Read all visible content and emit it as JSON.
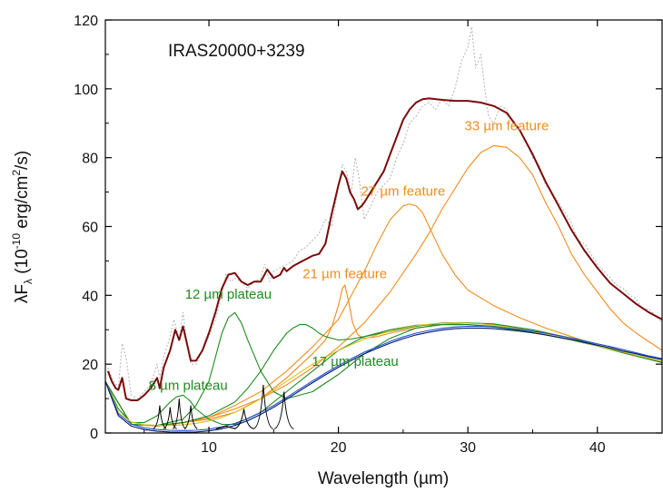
{
  "chart_data": {
    "type": "line",
    "title": "IRAS20000+3239",
    "xlabel": "Wavelength (µm)",
    "ylabel_parts": [
      "λF",
      "λ",
      " (10",
      "-10",
      " erg/cm",
      "2",
      "/s)"
    ],
    "xlim": [
      2,
      45
    ],
    "ylim": [
      0,
      120
    ],
    "xticks": [
      10,
      20,
      30,
      40
    ],
    "yticks": [
      0,
      20,
      40,
      60,
      80,
      100,
      120
    ],
    "grid": false,
    "colors": {
      "observed": "#b8b8b8",
      "model_total": "#7a0a0a",
      "orange_features": "#f08c1e",
      "green_plateaus": "#1e8a1e",
      "dust_continuum": "#001a6e",
      "continuum_blue": "#1f4fd0",
      "continuum_yellow": "#d8c020",
      "pah_lines": "#000000"
    },
    "annotations": [
      {
        "text": "33 µm feature",
        "color": "orange",
        "x": 33,
        "y": 88
      },
      {
        "text": "27 µm feature",
        "color": "orange",
        "x": 25,
        "y": 69
      },
      {
        "text": "21 µm feature",
        "color": "orange",
        "x": 20.5,
        "y": 45
      },
      {
        "text": "12 µm plateau",
        "color": "green",
        "x": 11.5,
        "y": 39
      },
      {
        "text": "17 µm plateau",
        "color": "green",
        "x": 21.3,
        "y": 19.5
      },
      {
        "text": "8 µm plateau",
        "color": "green",
        "x": 8.4,
        "y": 12.5
      }
    ],
    "series": [
      {
        "role": "observed",
        "color_key": "observed",
        "dashed": true,
        "x": [
          2.2,
          2.5,
          3,
          3.3,
          3.6,
          4,
          4.5,
          5,
          5.5,
          6,
          6.2,
          6.5,
          7,
          7.3,
          7.7,
          8,
          8.3,
          8.6,
          9,
          9.5,
          10,
          10.5,
          11,
          11.3,
          11.7,
          12,
          12.5,
          13,
          13.5,
          14,
          14.3,
          14.7,
          15,
          15.5,
          16,
          16.5,
          17,
          17.5,
          18,
          18.5,
          19,
          19.5,
          20,
          20.3,
          20.6,
          21,
          21.3,
          21.6,
          22,
          22.5,
          23,
          23.5,
          24,
          24.5,
          25,
          25.5,
          26,
          26.5,
          27,
          27.5,
          28,
          28.5,
          29,
          29.5,
          30,
          30.3,
          30.6,
          31,
          31.3,
          31.6,
          32,
          32.5,
          33,
          33.5,
          34,
          34.5,
          35,
          35.5,
          36,
          36.5,
          37,
          37.5,
          38,
          38.5,
          39,
          39.5,
          40,
          40.5,
          41,
          41.5,
          42,
          42.5,
          43,
          43.5,
          44,
          44.5,
          45
        ],
        "y": [
          19,
          16,
          13,
          26,
          22,
          11,
          10,
          12,
          14,
          20,
          16,
          22,
          28,
          33,
          27,
          35,
          26,
          20,
          20,
          24,
          28,
          33,
          40,
          46,
          44,
          45,
          44,
          42,
          44,
          45,
          49,
          44,
          47,
          48,
          49,
          50,
          53,
          54,
          56,
          58,
          62,
          60,
          72,
          78,
          76,
          70,
          80,
          74,
          62,
          66,
          70,
          72,
          74,
          80,
          84,
          90,
          92,
          95,
          96,
          94,
          97,
          95,
          100,
          108,
          112,
          118,
          106,
          110,
          100,
          92,
          90,
          95,
          94,
          90,
          88,
          85,
          80,
          78,
          72,
          70,
          67,
          64,
          61,
          56,
          55,
          52,
          49,
          47,
          45,
          43,
          42,
          40,
          39,
          36,
          36,
          34,
          32
        ]
      },
      {
        "role": "model_total",
        "color_key": "model_total",
        "x": [
          2.2,
          2.5,
          2.8,
          3.0,
          3.3,
          3.6,
          4,
          4.5,
          5,
          5.5,
          6,
          6.2,
          6.5,
          7,
          7.4,
          7.7,
          8,
          8.3,
          8.6,
          9,
          9.5,
          10,
          10.5,
          11,
          11.5,
          12,
          12.5,
          13,
          13.5,
          14,
          14.3,
          14.5,
          15,
          15.5,
          15.8,
          16,
          16.5,
          17,
          17.5,
          18,
          18.5,
          19,
          19.5,
          20,
          20.3,
          20.6,
          20.9,
          21.2,
          21.5,
          21.8,
          22,
          22.5,
          23,
          23.5,
          24,
          24.5,
          25,
          25.5,
          26,
          26.5,
          27,
          28,
          29,
          30,
          31,
          32,
          33,
          34,
          35,
          36,
          37,
          38,
          39,
          40,
          41,
          42,
          43,
          44,
          45
        ],
        "y": [
          18,
          15,
          13,
          12.5,
          16,
          10,
          9.5,
          9.5,
          11,
          13,
          16,
          13,
          19,
          24,
          30,
          27,
          31,
          26,
          21,
          21,
          24,
          29,
          35,
          42,
          46,
          46.5,
          44,
          43,
          44,
          44,
          46,
          47.5,
          45,
          46,
          48,
          47,
          48.5,
          49.5,
          50.5,
          51.5,
          52,
          55,
          64,
          72,
          76,
          74,
          70,
          68,
          65,
          66,
          67,
          70,
          73,
          76,
          81,
          86,
          91,
          94,
          96,
          97,
          97.2,
          96.8,
          96.5,
          96.5,
          96,
          95,
          93,
          88,
          81,
          73,
          66,
          59,
          53,
          48,
          43.5,
          40.5,
          37.5,
          35,
          33
        ]
      },
      {
        "role": "feature_33um",
        "color_key": "orange_features",
        "x": [
          2,
          4,
          6,
          8,
          10,
          12,
          14,
          16,
          18,
          20,
          22,
          24,
          26,
          27,
          28,
          29,
          30,
          31,
          32,
          33,
          34,
          35,
          36,
          37,
          38,
          39,
          40,
          41,
          42,
          43,
          44,
          45
        ],
        "y": [
          15,
          2.5,
          2,
          3,
          4.5,
          7,
          10,
          14,
          19,
          25,
          32,
          41,
          52,
          58,
          65,
          71,
          77,
          81.5,
          83.5,
          83,
          80,
          75,
          67,
          60,
          52,
          46,
          41,
          36,
          32,
          29,
          26.5,
          24
        ]
      },
      {
        "role": "feature_27um",
        "color_key": "orange_features",
        "x": [
          2,
          4,
          6,
          8,
          10,
          12,
          14,
          16,
          18,
          20,
          21,
          22,
          23,
          24,
          25,
          25.5,
          26,
          26.5,
          27,
          28,
          29,
          30,
          32,
          34,
          36,
          38,
          40,
          42,
          44,
          45
        ],
        "y": [
          15,
          2.5,
          2,
          3,
          4.5,
          8,
          12,
          18,
          25,
          33,
          40,
          47,
          55,
          62,
          66,
          66.5,
          66,
          64,
          60,
          52,
          46,
          41.5,
          37,
          33.5,
          30.5,
          28,
          25.5,
          23.5,
          21.5,
          20.5
        ]
      },
      {
        "role": "feature_21um",
        "color_key": "orange_features",
        "x": [
          2,
          4,
          6,
          8,
          10,
          12,
          14,
          16,
          18,
          19,
          19.5,
          20,
          20.3,
          20.5,
          20.8,
          21.1,
          21.5,
          22,
          23,
          24,
          26,
          28,
          30,
          32,
          35,
          38,
          40,
          42,
          44,
          45
        ],
        "y": [
          15,
          2.5,
          2,
          3,
          4,
          6,
          10,
          16,
          23,
          27,
          31,
          37,
          42,
          43,
          38,
          32,
          28.5,
          27.5,
          28,
          29,
          30.5,
          31.5,
          32,
          31.5,
          30,
          27.5,
          25.5,
          23.5,
          21.5,
          20.5
        ]
      },
      {
        "role": "plateau_17um",
        "color_key": "green_plateaus",
        "x": [
          2,
          4,
          6,
          8,
          10,
          12,
          13,
          14,
          15,
          16,
          16.5,
          17,
          17.5,
          18,
          18.5,
          19,
          20,
          21,
          22,
          24,
          26,
          28,
          30,
          32,
          35,
          38,
          40,
          42,
          45
        ],
        "y": [
          15,
          2.5,
          2.2,
          3,
          5,
          9,
          13,
          18,
          24,
          29,
          30.5,
          31.5,
          31.5,
          30.5,
          29,
          28,
          27,
          27.3,
          28,
          29.5,
          31,
          32,
          32,
          31.7,
          30,
          27.5,
          25.5,
          23.5,
          20.5
        ]
      },
      {
        "role": "plateau_12um",
        "color_key": "green_plateaus",
        "x": [
          2,
          4,
          6,
          8,
          9,
          10,
          10.5,
          11,
          11.5,
          12,
          12.5,
          13,
          14,
          15,
          16,
          18,
          20,
          22,
          24,
          26,
          28,
          30,
          32,
          35,
          38,
          40,
          42,
          45
        ],
        "y": [
          15,
          2.5,
          2.2,
          4,
          8,
          15,
          22,
          29,
          33.5,
          35,
          32,
          27,
          18,
          12,
          10,
          12,
          17,
          23,
          27.5,
          30.5,
          31.5,
          31.5,
          31,
          29.5,
          27,
          25.3,
          23.3,
          20.5
        ]
      },
      {
        "role": "plateau_8um",
        "color_key": "green_plateaus",
        "x": [
          2,
          3,
          4,
          5,
          6,
          7,
          7.5,
          8,
          8.5,
          9,
          10,
          11,
          12,
          14,
          16,
          18,
          20,
          22,
          24,
          26,
          28,
          30,
          32,
          35,
          38,
          40,
          42,
          45
        ],
        "y": [
          15,
          7,
          3,
          3,
          5,
          9,
          10.5,
          11,
          9.5,
          7,
          4,
          2.5,
          2.5,
          6,
          12,
          18,
          24,
          28,
          30,
          31.3,
          31.5,
          31.5,
          30.8,
          29.3,
          27,
          25.3,
          23.3,
          20.5
        ]
      },
      {
        "role": "continuum_yellow",
        "color_key": "continuum_yellow",
        "x": [
          2,
          3,
          4,
          5,
          6,
          7,
          8,
          9,
          10,
          11,
          12,
          13,
          14,
          15,
          16,
          17,
          18,
          19,
          20,
          21,
          22,
          23,
          24,
          25,
          26,
          27,
          28,
          29,
          30,
          31,
          32,
          33,
          34,
          35,
          36,
          37,
          38,
          39,
          40,
          41,
          42,
          43,
          44,
          45
        ],
        "y": [
          15,
          6,
          3.2,
          2.4,
          2.2,
          2.2,
          2.4,
          2.8,
          3.5,
          4.5,
          6,
          7.8,
          10,
          12.5,
          15,
          17.5,
          20,
          22,
          24,
          25.7,
          27.3,
          28.5,
          29.6,
          30.5,
          31.2,
          31.6,
          31.9,
          32,
          31.9,
          31.7,
          31.3,
          30.8,
          30.2,
          29.5,
          28.7,
          27.9,
          27,
          26.2,
          25.3,
          24.4,
          23.5,
          22.6,
          21.7,
          20.8
        ]
      },
      {
        "role": "continuum_blue",
        "color_key": "continuum_blue",
        "x": [
          2,
          3,
          4,
          5,
          6,
          7,
          8,
          9,
          10,
          11,
          12,
          13,
          14,
          15,
          16,
          17,
          18,
          19,
          20,
          21,
          22,
          23,
          24,
          25,
          26,
          27,
          28,
          29,
          30,
          31,
          32,
          33,
          34,
          35,
          36,
          37,
          38,
          39,
          40,
          41,
          42,
          43,
          44,
          45
        ],
        "y": [
          15,
          5.5,
          2.6,
          1.5,
          1,
          0.8,
          0.7,
          0.8,
          1.1,
          1.8,
          2.8,
          4.2,
          6,
          8,
          10.3,
          12.7,
          15.1,
          17.4,
          19.6,
          21.6,
          23.5,
          25,
          26.6,
          27.9,
          29,
          29.8,
          30.4,
          30.8,
          31,
          31,
          30.8,
          30.5,
          30.1,
          29.6,
          29,
          28.3,
          27.6,
          26.8,
          25.9,
          25.1,
          24.2,
          23.3,
          22.4,
          21.6
        ]
      },
      {
        "role": "dust_continuum",
        "color_key": "dust_continuum",
        "x": [
          2,
          3,
          4,
          5,
          6,
          7,
          8,
          9,
          10,
          11,
          12,
          13,
          14,
          15,
          16,
          17,
          18,
          19,
          20,
          21,
          22,
          23,
          24,
          25,
          26,
          27,
          28,
          29,
          30,
          31,
          32,
          33,
          34,
          35,
          36,
          37,
          38,
          39,
          40,
          41,
          42,
          43,
          44,
          45
        ],
        "y": [
          15,
          5,
          2,
          1,
          0.5,
          0.3,
          0.2,
          0.3,
          0.6,
          1.2,
          2.2,
          3.6,
          5.4,
          7.5,
          9.8,
          12.2,
          14.6,
          16.9,
          19.1,
          21.1,
          23,
          24.6,
          26.1,
          27.4,
          28.5,
          29.3,
          29.9,
          30.3,
          30.5,
          30.5,
          30.3,
          30,
          29.6,
          29.1,
          28.5,
          27.8,
          27.1,
          26.3,
          25.5,
          24.7,
          23.8,
          23,
          22.1,
          21.3
        ]
      }
    ],
    "pah_line_peaks": [
      {
        "x": 6.2,
        "y": 8
      },
      {
        "x": 7.0,
        "y": 7.5
      },
      {
        "x": 7.7,
        "y": 10
      },
      {
        "x": 8.6,
        "y": 8
      },
      {
        "x": 11.3,
        "y": 2
      },
      {
        "x": 12.7,
        "y": 7
      },
      {
        "x": 14.2,
        "y": 14
      },
      {
        "x": 15.8,
        "y": 12
      }
    ]
  }
}
